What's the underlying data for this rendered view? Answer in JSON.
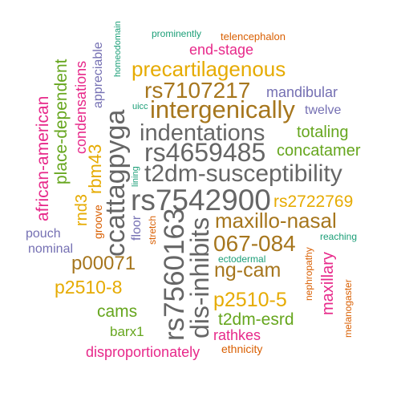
{
  "words": [
    {
      "text": "prominently",
      "color": "#1b9e77",
      "rotated": false
    },
    {
      "text": "telencephalon",
      "color": "#d95f02",
      "rotated": false
    },
    {
      "text": "homeodomain",
      "color": "#1b9e77",
      "rotated": true
    },
    {
      "text": "end-stage",
      "color": "#e7298a",
      "rotated": false
    },
    {
      "text": "precartilagenous",
      "color": "#e6ab02",
      "rotated": false
    },
    {
      "text": "appreciable",
      "color": "#7570b3",
      "rotated": true
    },
    {
      "text": "condensations",
      "color": "#e7298a",
      "rotated": true
    },
    {
      "text": "place-dependent",
      "color": "#66a61e",
      "rotated": true
    },
    {
      "text": "african-american",
      "color": "#e7298a",
      "rotated": true
    },
    {
      "text": "rs7107217",
      "color": "#a6761d",
      "rotated": false
    },
    {
      "text": "mandibular",
      "color": "#7570b3",
      "rotated": false
    },
    {
      "text": "intergenically",
      "color": "#a6761d",
      "rotated": false
    },
    {
      "text": "uicc",
      "color": "#1b9e77",
      "rotated": false
    },
    {
      "text": "twelve",
      "color": "#7570b3",
      "rotated": false
    },
    {
      "text": "ccattagpyga",
      "color": "#666666",
      "rotated": true
    },
    {
      "text": "indentations",
      "color": "#666666",
      "rotated": false
    },
    {
      "text": "totaling",
      "color": "#66a61e",
      "rotated": false
    },
    {
      "text": "rs4659485",
      "color": "#666666",
      "rotated": false
    },
    {
      "text": "concatamer",
      "color": "#66a61e",
      "rotated": false
    },
    {
      "text": "rbm43",
      "color": "#e6ab02",
      "rotated": true
    },
    {
      "text": "lining",
      "color": "#1b9e77",
      "rotated": true
    },
    {
      "text": "t2dm-susceptibility",
      "color": "#666666",
      "rotated": false
    },
    {
      "text": "rs7542900",
      "color": "#666666",
      "rotated": false
    },
    {
      "text": "rs2722769",
      "color": "#e6ab02",
      "rotated": false
    },
    {
      "text": "rnd3",
      "color": "#e6ab02",
      "rotated": true
    },
    {
      "text": "groove",
      "color": "#d95f02",
      "rotated": true
    },
    {
      "text": "floor",
      "color": "#7570b3",
      "rotated": true
    },
    {
      "text": "stretch",
      "color": "#d95f02",
      "rotated": true
    },
    {
      "text": "maxillo-nasal",
      "color": "#a6761d",
      "rotated": false
    },
    {
      "text": "pouch",
      "color": "#7570b3",
      "rotated": false
    },
    {
      "text": "rs7560163",
      "color": "#666666",
      "rotated": true
    },
    {
      "text": "dis-inhibits",
      "color": "#666666",
      "rotated": true
    },
    {
      "text": "067-084",
      "color": "#a6761d",
      "rotated": false
    },
    {
      "text": "reaching",
      "color": "#1b9e77",
      "rotated": false
    },
    {
      "text": "nominal",
      "color": "#7570b3",
      "rotated": false
    },
    {
      "text": "p00071",
      "color": "#a6761d",
      "rotated": false
    },
    {
      "text": "ectodermal",
      "color": "#1b9e77",
      "rotated": false
    },
    {
      "text": "ng-cam",
      "color": "#a6761d",
      "rotated": false
    },
    {
      "text": "maxillary",
      "color": "#e7298a",
      "rotated": true
    },
    {
      "text": "nephropathy",
      "color": "#d95f02",
      "rotated": true
    },
    {
      "text": "melanogaster",
      "color": "#d95f02",
      "rotated": true
    },
    {
      "text": "p2510-8",
      "color": "#e6ab02",
      "rotated": false
    },
    {
      "text": "p2510-5",
      "color": "#e6ab02",
      "rotated": false
    },
    {
      "text": "cams",
      "color": "#66a61e",
      "rotated": false
    },
    {
      "text": "t2dm-esrd",
      "color": "#66a61e",
      "rotated": false
    },
    {
      "text": "barx1",
      "color": "#66a61e",
      "rotated": false
    },
    {
      "text": "rathkes",
      "color": "#e7298a",
      "rotated": false
    },
    {
      "text": "disproportionately",
      "color": "#e7298a",
      "rotated": false
    },
    {
      "text": "ethnicity",
      "color": "#d95f02",
      "rotated": false
    }
  ]
}
